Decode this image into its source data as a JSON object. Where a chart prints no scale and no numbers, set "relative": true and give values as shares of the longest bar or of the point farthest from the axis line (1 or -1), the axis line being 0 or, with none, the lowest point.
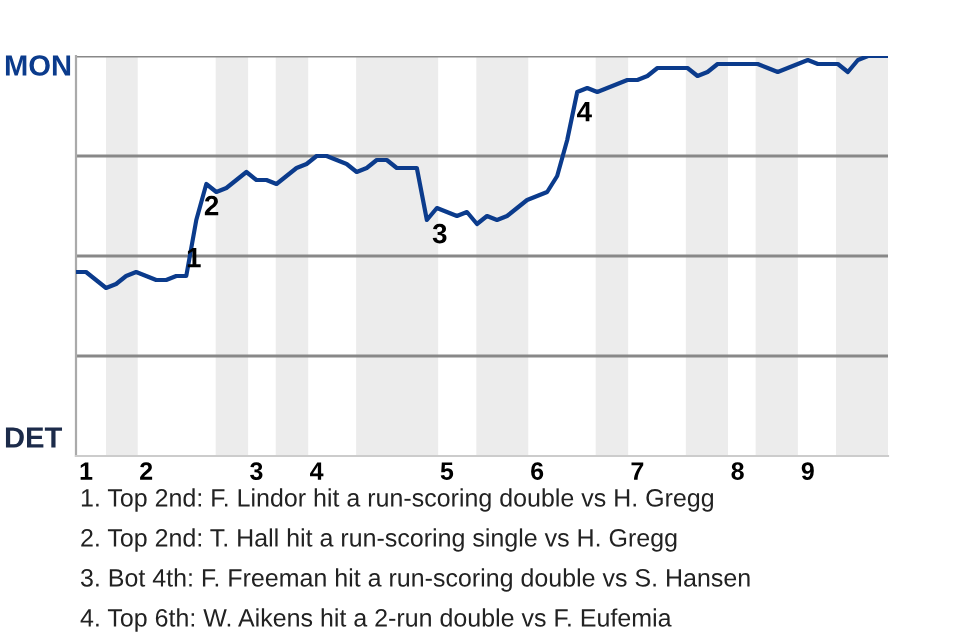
{
  "chart_data": {
    "type": "line",
    "relative": true,
    "categories": [
      null,
      "1",
      null,
      null,
      null,
      null,
      null,
      "2",
      null,
      null,
      null,
      null,
      null,
      null,
      null,
      null,
      null,
      null,
      "3",
      null,
      null,
      null,
      null,
      null,
      "4",
      null,
      null,
      null,
      null,
      null,
      null,
      null,
      null,
      null,
      null,
      null,
      null,
      "5",
      null,
      null,
      null,
      null,
      null,
      null,
      null,
      null,
      "6",
      null,
      null,
      null,
      null,
      null,
      null,
      null,
      null,
      null,
      "7",
      null,
      null,
      null,
      null,
      null,
      null,
      null,
      null,
      null,
      "8",
      null,
      null,
      null,
      null,
      null,
      null,
      "9",
      null,
      null,
      null,
      null,
      null,
      null,
      null,
      null
    ],
    "series": [
      {
        "color": "#0b3b8c",
        "values": [
          0.46,
          0.46,
          0.44,
          0.42,
          0.43,
          0.45,
          0.46,
          0.45,
          0.44,
          0.44,
          0.45,
          0.45,
          0.59,
          0.68,
          0.66,
          0.67,
          0.69,
          0.71,
          0.69,
          0.69,
          0.68,
          0.7,
          0.72,
          0.73,
          0.75,
          0.75,
          0.74,
          0.73,
          0.71,
          0.72,
          0.74,
          0.74,
          0.72,
          0.72,
          0.72,
          0.59,
          0.62,
          0.61,
          0.6,
          0.61,
          0.58,
          0.6,
          0.59,
          0.6,
          0.62,
          0.64,
          0.65,
          0.66,
          0.7,
          0.79,
          0.91,
          0.92,
          0.91,
          0.92,
          0.93,
          0.94,
          0.94,
          0.95,
          0.97,
          0.97,
          0.97,
          0.97,
          0.95,
          0.96,
          0.98,
          0.98,
          0.98,
          0.98,
          0.98,
          0.97,
          0.96,
          0.97,
          0.98,
          0.99,
          0.98,
          0.98,
          0.98,
          0.96,
          0.99,
          1.0,
          1.0,
          1.0
        ]
      }
    ],
    "grid": "y",
    "legend": false,
    "annotations": [
      "MON",
      "DET",
      "1",
      "2",
      "3",
      "4",
      "1. Top 2nd: F. Lindor hit a run-scoring double vs H. Gregg",
      "2. Top 2nd: T. Hall hit a run-scoring single vs H. Gregg",
      "3. Bot 4th: F. Freeman hit a run-scoring double vs S. Hansen",
      "4. Top 6th: W. Aikens hit a 2-run double vs F. Eufemia"
    ]
  }
}
